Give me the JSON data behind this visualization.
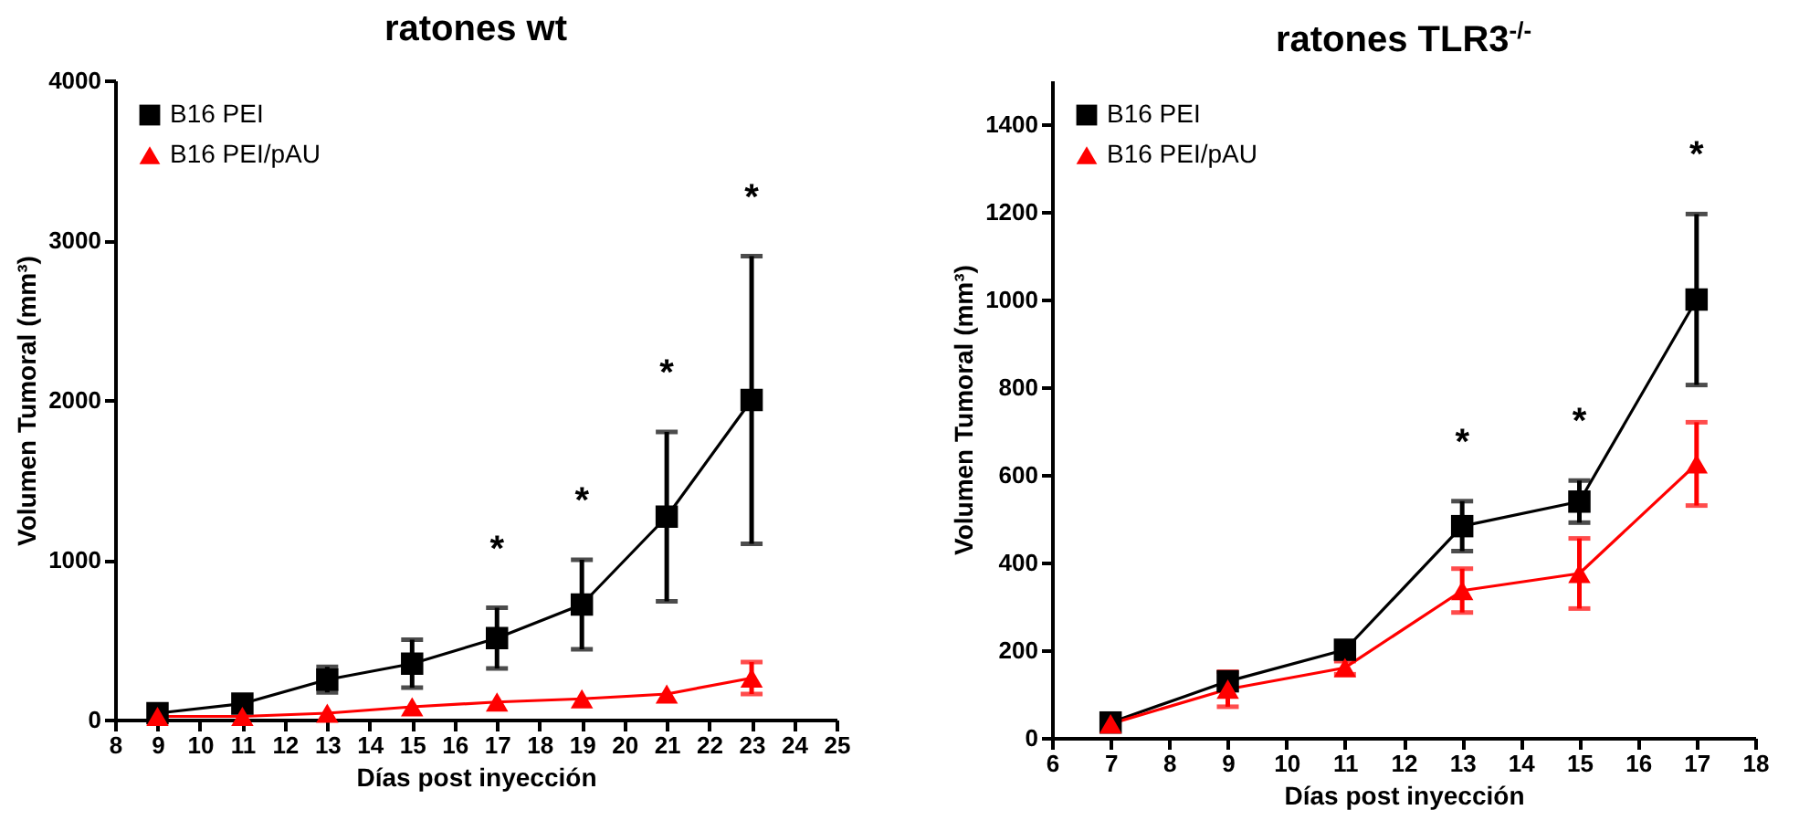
{
  "chart_data": [
    {
      "type": "line",
      "title": "ratones wt",
      "xlabel": "Días post inyección",
      "ylabel": "Volumen Tumoral (mm³)",
      "x": [
        9,
        11,
        13,
        15,
        17,
        19,
        21,
        23
      ],
      "xlim": [
        8,
        25
      ],
      "xticks": [
        8,
        9,
        10,
        11,
        12,
        13,
        14,
        15,
        16,
        17,
        18,
        19,
        20,
        21,
        22,
        23,
        24,
        25
      ],
      "ylim": [
        0,
        4000
      ],
      "yticks": [
        0,
        1000,
        2000,
        3000,
        4000
      ],
      "legend": "top left",
      "grid": false,
      "series": [
        {
          "name": "B16 PEI",
          "color": "#000000",
          "marker": "square",
          "values": [
            40,
            100,
            250,
            350,
            510,
            720,
            1270,
            2000
          ],
          "errors": [
            null,
            null,
            80,
            150,
            190,
            280,
            530,
            900
          ]
        },
        {
          "name": "B16  PEI/pAU",
          "color": "#ff0000",
          "marker": "triangle",
          "values": [
            20,
            20,
            40,
            80,
            110,
            130,
            160,
            260
          ],
          "errors": [
            null,
            null,
            null,
            null,
            null,
            null,
            null,
            100
          ]
        }
      ],
      "annotations": [
        "*",
        "*",
        "*",
        "*"
      ]
    },
    {
      "type": "line",
      "title": "ratones TLR3$^{-/-}$",
      "xlabel": "Días post inyección",
      "ylabel": "Volumen Tumoral (mm³)",
      "x": [
        7,
        9,
        11,
        13,
        15,
        17
      ],
      "xlim": [
        6,
        18
      ],
      "xticks": [
        6,
        7,
        8,
        9,
        10,
        11,
        12,
        13,
        14,
        15,
        16,
        17,
        18
      ],
      "ylim": [
        0,
        1500
      ],
      "yticks": [
        0,
        200,
        400,
        600,
        800,
        1000,
        1200,
        1400
      ],
      "legend": "top left",
      "grid": false,
      "series": [
        {
          "name": "B16 PEI",
          "color": "#000000",
          "marker": "square",
          "values": [
            35,
            129,
            201,
            483,
            539,
            1000
          ],
          "errors": [
            null,
            null,
            null,
            57,
            48,
            195
          ]
        },
        {
          "name": "B16 PEI/pAU",
          "color": "#ff0000",
          "marker": "triangle",
          "values": [
            32,
            111,
            160,
            336,
            375,
            625
          ],
          "errors": [
            null,
            40,
            15,
            50,
            80,
            95
          ]
        }
      ],
      "annotations": [
        "*",
        "*",
        "*"
      ]
    }
  ]
}
